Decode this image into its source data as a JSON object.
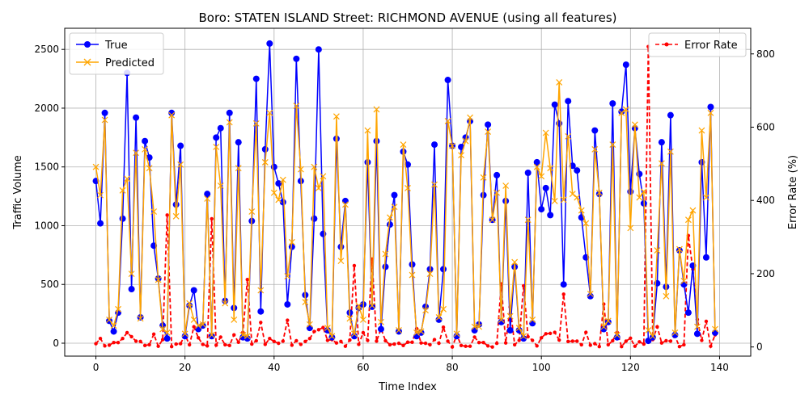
{
  "chart_data": {
    "type": "line",
    "title": "Boro: STATEN ISLAND Street: RICHMOND AVENUE (using all features)",
    "xlabel": "Time Index",
    "ylabel": "Traffic Volume",
    "y2label": "Error Rate (%)",
    "xlim": [
      -7,
      147
    ],
    "ylim": [
      -110,
      2680
    ],
    "y2lim": [
      -25,
      870
    ],
    "x_ticks": [
      0,
      20,
      40,
      60,
      80,
      100,
      120,
      140
    ],
    "y_ticks": [
      0,
      500,
      1000,
      1500,
      2000,
      2500
    ],
    "y2_ticks": [
      0,
      200,
      400,
      600,
      800
    ],
    "grid": true,
    "legend_left": "top-left",
    "legend_right": "top-right",
    "series": [
      {
        "name": "True",
        "axis": "left",
        "color": "#0000ff",
        "values": [
          1380,
          1020,
          1960,
          190,
          100,
          260,
          1060,
          2300,
          460,
          1920,
          220,
          1720,
          1580,
          830,
          550,
          150,
          40,
          1960,
          1180,
          1680,
          60,
          320,
          450,
          120,
          150,
          1270,
          60,
          1750,
          1830,
          360,
          1960,
          300,
          1710,
          50,
          40,
          1040,
          2250,
          270,
          1650,
          2550,
          1500,
          1360,
          1200,
          330,
          820,
          2420,
          1380,
          410,
          130,
          1060,
          2500,
          930,
          110,
          50,
          1740,
          820,
          1210,
          260,
          60,
          300,
          330,
          1540,
          310,
          1720,
          120,
          650,
          1010,
          1260,
          100,
          1630,
          1520,
          670,
          60,
          90,
          310,
          630,
          1690,
          200,
          630,
          2240,
          1680,
          60,
          1670,
          1750,
          1890,
          110,
          160,
          1260,
          1860,
          1050,
          1430,
          180,
          1210,
          110,
          650,
          110,
          40,
          1450,
          170,
          1540,
          1140,
          1320,
          1090,
          2030,
          1870,
          500,
          2060,
          1510,
          1470,
          1070,
          730,
          400,
          1810,
          1270,
          120,
          180,
          2040,
          50,
          1970,
          2370,
          1290,
          1830,
          1440,
          1190,
          20,
          50,
          510,
          1710,
          480,
          1940,
          70,
          790,
          500,
          260,
          660,
          80,
          1540,
          730,
          2010,
          90
        ]
      },
      {
        "name": "Predicted",
        "axis": "left",
        "color": "#ffa500",
        "values": [
          1500,
          1260,
          1900,
          200,
          150,
          290,
          1300,
          1400,
          590,
          1620,
          210,
          1650,
          1490,
          1120,
          540,
          120,
          90,
          1940,
          1080,
          1520,
          80,
          340,
          200,
          150,
          160,
          1230,
          70,
          1670,
          1340,
          340,
          1880,
          200,
          1490,
          70,
          60,
          1120,
          1870,
          450,
          1540,
          1960,
          1280,
          1220,
          1390,
          570,
          860,
          2020,
          1480,
          350,
          160,
          1500,
          1320,
          1420,
          130,
          60,
          1930,
          700,
          1180,
          210,
          80,
          320,
          200,
          1810,
          320,
          1990,
          180,
          760,
          1070,
          1160,
          110,
          1690,
          1320,
          580,
          90,
          100,
          280,
          590,
          1350,
          220,
          290,
          1890,
          1680,
          80,
          1600,
          1720,
          1920,
          140,
          140,
          1410,
          1800,
          1050,
          1280,
          200,
          1340,
          230,
          690,
          130,
          60,
          1050,
          200,
          1500,
          1420,
          1790,
          1490,
          1210,
          2220,
          1220,
          1760,
          1270,
          1240,
          1130,
          1020,
          420,
          1650,
          1280,
          140,
          190,
          1690,
          70,
          1960,
          1990,
          980,
          1860,
          1240,
          1290,
          110,
          60,
          790,
          1530,
          400,
          1630,
          90,
          800,
          530,
          1050,
          1130,
          140,
          1810,
          1240,
          1960,
          120
        ]
      },
      {
        "name": "Error Rate",
        "axis": "right",
        "color": "#ff0000",
        "values": [
          9,
          23,
          3,
          5,
          12,
          12,
          23,
          39,
          28,
          16,
          15,
          4,
          6,
          35,
          2,
          20,
          360,
          1,
          8,
          9,
          33,
          6,
          55,
          25,
          7,
          3,
          350,
          5,
          27,
          6,
          4,
          33,
          13,
          40,
          184,
          8,
          17,
          67,
          7,
          23,
          15,
          10,
          16,
          73,
          5,
          17,
          7,
          15,
          23,
          42,
          47,
          53,
          18,
          20,
          11,
          15,
          2,
          19,
          222,
          7,
          39,
          18,
          240,
          16,
          50,
          17,
          6,
          8,
          10,
          4,
          13,
          13,
          50,
          11,
          10,
          6,
          20,
          10,
          54,
          16,
          0,
          33,
          4,
          2,
          2,
          27,
          12,
          12,
          3,
          0,
          10,
          172,
          11,
          109,
          6,
          18,
          167,
          28,
          18,
          3,
          25,
          36,
          37,
          40,
          19,
          144,
          15,
          16,
          16,
          6,
          40,
          5,
          9,
          1,
          117,
          6,
          17,
          40,
          1,
          16,
          24,
          2,
          14,
          8,
          820,
          20,
          55,
          11,
          17,
          16,
          29,
          1,
          6,
          304,
          212,
          75,
          18,
          70,
          2,
          33
        ]
      }
    ]
  }
}
